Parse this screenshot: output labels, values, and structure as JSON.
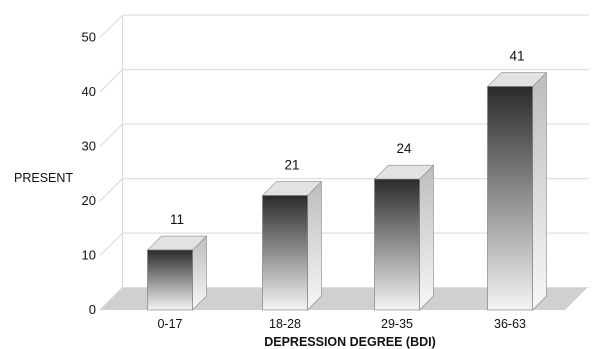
{
  "chart_data": {
    "type": "bar",
    "categories": [
      "0-17",
      "18-28",
      "29-35",
      "36-63"
    ],
    "values": [
      11,
      21,
      24,
      41
    ],
    "data_labels": [
      "11",
      "21",
      "24",
      "41"
    ],
    "ylabel": "PRESENT",
    "xlabel": "DEPRESSION DEGREE (BDI)",
    "ylim": [
      0,
      50
    ],
    "yticks": [
      "0",
      "10",
      "20",
      "30",
      "40",
      "50"
    ],
    "grid": true,
    "style": "3d-bars",
    "colors": {
      "bar_dark": "#2b2b2b",
      "bar_light": "#f4f4f4",
      "floor": "#d0d0d0",
      "grid": "#d9d9d9"
    }
  }
}
